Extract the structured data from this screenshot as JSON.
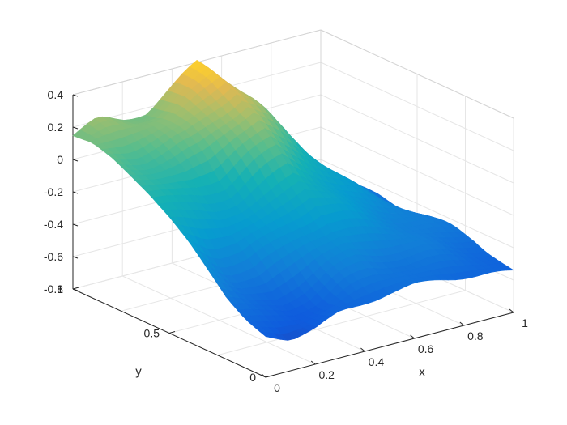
{
  "chart_data": {
    "type": "surface",
    "colormap": "parula",
    "grid": true,
    "xlabel": "x",
    "ylabel": "y",
    "zlabel": "",
    "xlim": [
      0,
      1
    ],
    "ylim": [
      0,
      1
    ],
    "zlim": [
      -0.8,
      0.4
    ],
    "x_ticks": [
      0,
      0.2,
      0.4,
      0.6,
      0.8,
      1
    ],
    "x_tick_labels": [
      "0",
      "0.2",
      "0.4",
      "0.6",
      "0.8",
      "1"
    ],
    "y_ticks": [
      0,
      0.5,
      1
    ],
    "y_tick_labels": [
      "0",
      "0.5",
      "1"
    ],
    "z_ticks": [
      -0.8,
      -0.6,
      -0.4,
      -0.2,
      0,
      0.2,
      0.4
    ],
    "z_tick_labels": [
      "-0.8",
      "-0.6",
      "-0.4",
      "-0.2",
      "0",
      "0.2",
      "0.4"
    ],
    "x": [
      0,
      0.1,
      0.2,
      0.3,
      0.4,
      0.5,
      0.6,
      0.7,
      0.8,
      0.9,
      1.0
    ],
    "y": [
      0,
      0.1,
      0.2,
      0.3,
      0.4,
      0.5,
      0.6,
      0.7,
      0.8,
      0.9,
      1.0
    ],
    "z": [
      [
        -0.55,
        -0.6,
        -0.58,
        -0.52,
        -0.5,
        -0.48,
        -0.47,
        -0.48,
        -0.5,
        -0.52,
        -0.55
      ],
      [
        -0.5,
        -0.56,
        -0.57,
        -0.53,
        -0.45,
        -0.42,
        -0.42,
        -0.44,
        -0.46,
        -0.48,
        -0.5
      ],
      [
        -0.42,
        -0.5,
        -0.52,
        -0.46,
        -0.38,
        -0.33,
        -0.35,
        -0.38,
        -0.4,
        -0.44,
        -0.46
      ],
      [
        -0.3,
        -0.4,
        -0.42,
        -0.35,
        -0.27,
        -0.25,
        -0.28,
        -0.32,
        -0.36,
        -0.4,
        -0.45
      ],
      [
        -0.18,
        -0.28,
        -0.3,
        -0.25,
        -0.18,
        -0.12,
        -0.18,
        -0.25,
        -0.32,
        -0.38,
        -0.45
      ],
      [
        -0.08,
        -0.15,
        -0.18,
        -0.16,
        -0.1,
        -0.02,
        -0.1,
        -0.2,
        -0.28,
        -0.36,
        -0.45
      ],
      [
        0.0,
        -0.05,
        -0.06,
        -0.05,
        0.05,
        0.12,
        0.02,
        -0.12,
        -0.24,
        -0.36,
        -0.46
      ],
      [
        0.06,
        0.04,
        0.04,
        0.08,
        0.18,
        0.25,
        0.12,
        -0.06,
        -0.22,
        -0.36,
        -0.46
      ],
      [
        0.12,
        0.1,
        0.12,
        0.16,
        0.26,
        0.33,
        0.2,
        -0.02,
        -0.22,
        -0.38,
        -0.48
      ],
      [
        0.16,
        0.16,
        0.18,
        0.2,
        0.3,
        0.38,
        0.24,
        -0.02,
        -0.24,
        -0.4,
        -0.52
      ],
      [
        0.15,
        0.2,
        0.17,
        0.18,
        0.28,
        0.4,
        0.28,
        0.02,
        -0.26,
        -0.44,
        -0.6
      ]
    ],
    "z_note": "z[j][i] is height at x[i], y[j] (values estimated)"
  }
}
